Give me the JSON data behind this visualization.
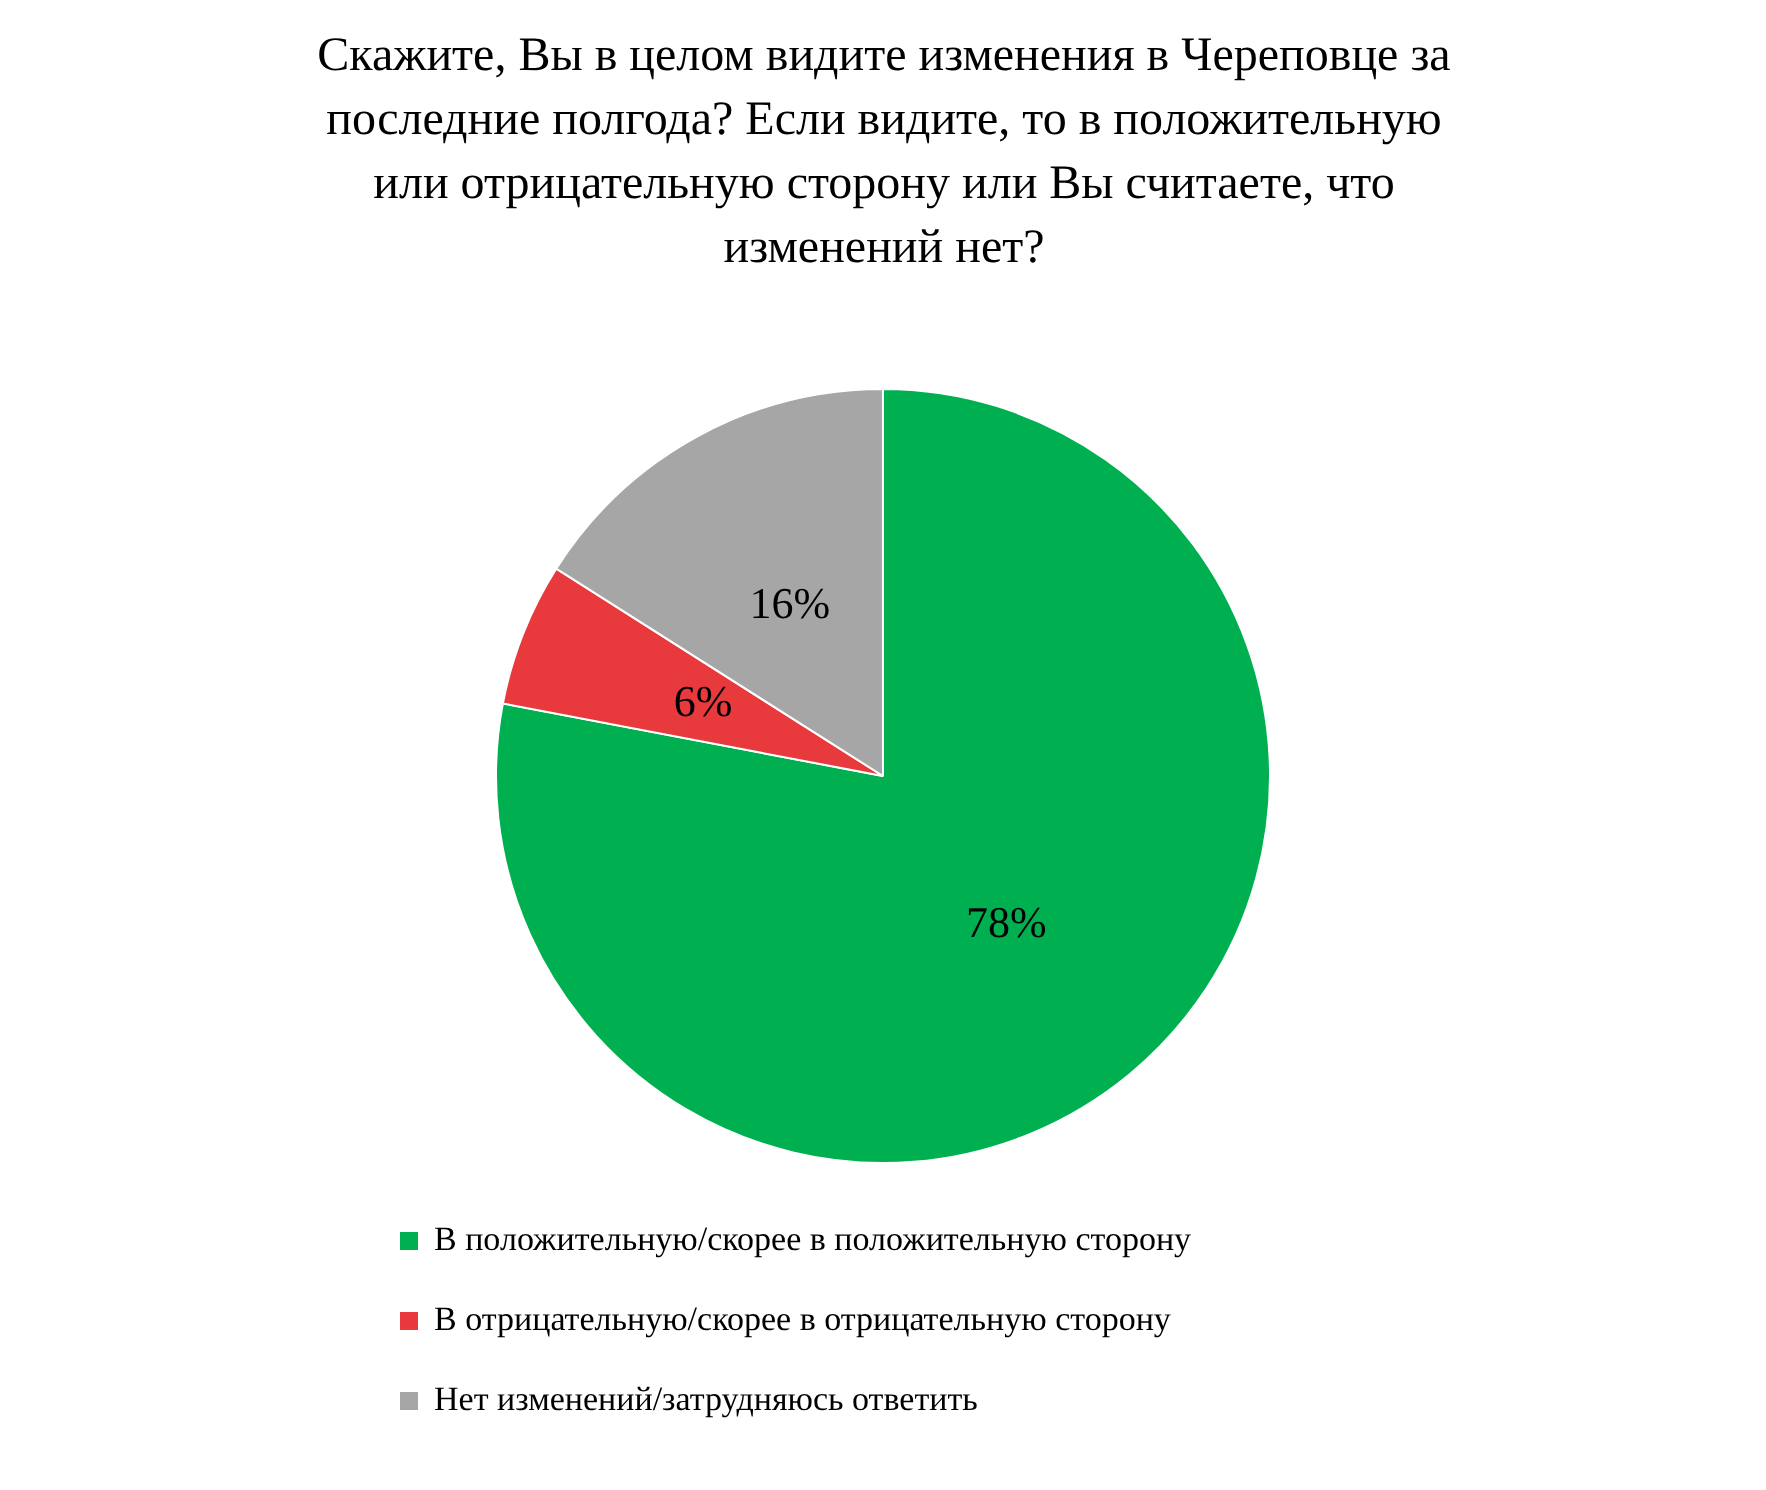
{
  "chart_data": {
    "type": "pie",
    "title": "Скажите, Вы в целом видите изменения в Череповце за последние полгода? Если видите, то в положительную или отрицательную сторону или Вы считаете, что изменений нет?",
    "categories": [
      "В положительную/скорее в положительную сторону",
      "В отрицательную/скорее в отрицательную сторону",
      "Нет изменений/затрудняюсь ответить"
    ],
    "values": [
      78,
      6,
      16
    ],
    "value_labels": [
      "78%",
      "6%",
      "16%"
    ],
    "colors": [
      "#00b050",
      "#e8393c",
      "#a6a6a6"
    ],
    "legend": "bottom"
  }
}
